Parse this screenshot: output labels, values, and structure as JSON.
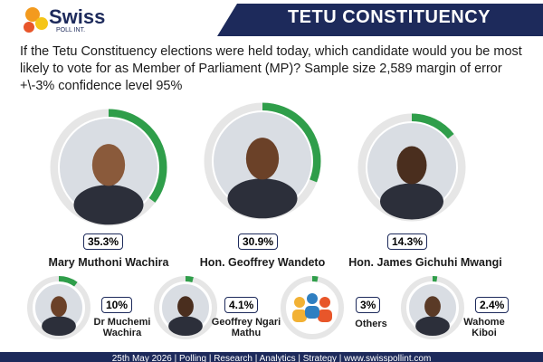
{
  "header": {
    "logo": "Swiss",
    "logo_sub": "POLL INT.",
    "title": "TETU CONSTITUENCY"
  },
  "question": "If the Tetu Constituency elections were held today, which candidate would you be most likely to vote for as Member of Parliament (MP)? Sample size 2,589 margin of error +\\-3% confidence level 95%",
  "candidates": {
    "names": [
      "Mary Muthoni Wachira",
      "Hon. Geoffrey Wandeto",
      "Hon. James Gichuhi Mwangi",
      "Dr Muchemi Wachira",
      "Geoffrey Ngari Mathu",
      "Others",
      "Wahome Kiboi"
    ],
    "values": [
      35.3,
      30.9,
      14.3,
      10,
      4.1,
      3,
      2.4
    ],
    "value_labels": [
      "35.3%",
      "30.9%",
      "14.3%",
      "10%",
      "4.1%",
      "3%",
      "2.4%"
    ],
    "color": "#2f9e4a"
  },
  "footer": "25th May 2026 | Polling | Research | Analytics | Strategy | www.swisspollint.com"
}
